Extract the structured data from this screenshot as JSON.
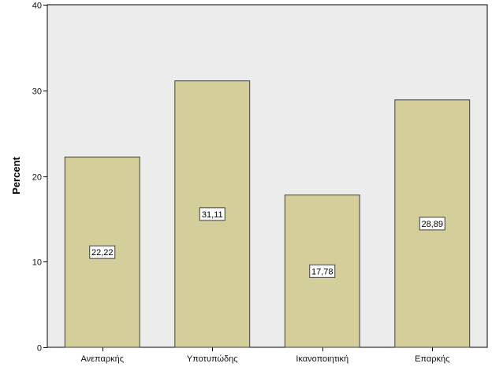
{
  "chart_data": {
    "type": "bar",
    "categories": [
      "Ανεπαρκής",
      "Υποτυπώδης",
      "Ικανοποιητική",
      "Επαρκής"
    ],
    "values": [
      22.22,
      31.11,
      17.78,
      28.89
    ],
    "data_labels": [
      "22,22",
      "31,11",
      "17,78",
      "28,89"
    ],
    "title": "",
    "xlabel": "",
    "ylabel": "Percent",
    "ylim": [
      0,
      40
    ],
    "yticks": [
      0,
      10,
      20,
      30,
      40
    ],
    "ytick_labels": [
      "0",
      "10",
      "20",
      "30",
      "40"
    ],
    "grid": false,
    "legend": "none",
    "colors": {
      "plot_background": "#ececec",
      "bar_fill": "#d3ce9a",
      "bar_stroke": "#3f3f3f",
      "axis": "#000000",
      "label_box_fill": "#ffffff"
    }
  }
}
